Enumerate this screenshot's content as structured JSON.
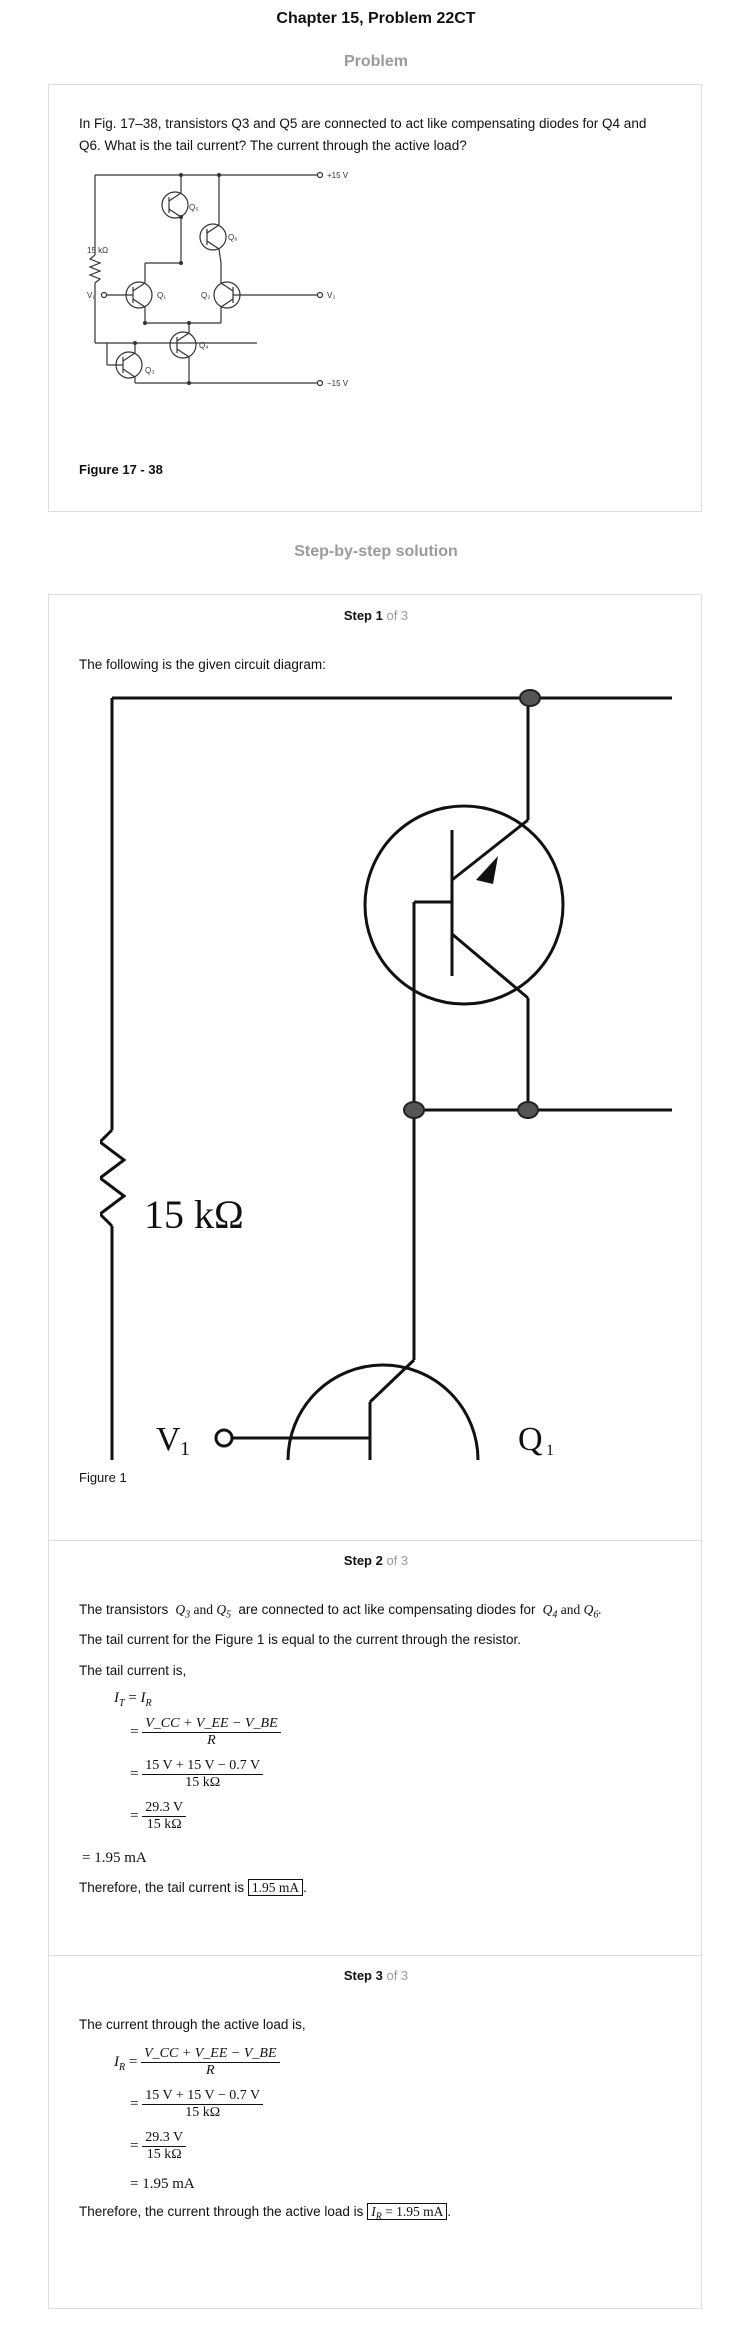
{
  "header": {
    "title": "Chapter 15, Problem 22CT",
    "problem_heading": "Problem",
    "solution_heading": "Step-by-step solution"
  },
  "problem": {
    "text": "In Fig. 17–38, transistors Q3 and Q5 are connected to act like compensating diodes for Q4 and Q6. What is the tail current? The current through the active load?",
    "figure_caption": "Figure 17 - 38",
    "diagram_labels": {
      "vplus": "+15 V",
      "vminus": "−15 V",
      "resistor": "15 kΩ",
      "v1": "V₁",
      "v2": "V₂",
      "q1": "Q₁",
      "q2": "Q₂",
      "q3": "Q₃",
      "q4": "Q₄",
      "q5": "Q₅",
      "q6": "Q₆"
    }
  },
  "steps": [
    {
      "label": "Step 1",
      "of": "of 3",
      "intro": "The following is the given circuit diagram:",
      "figure_caption": "Figure 1",
      "diagram_labels": {
        "resistor": "15 kΩ",
        "v1": "V",
        "v1_sub": "1",
        "q1": "Q",
        "q1_sub": "1"
      }
    },
    {
      "label": "Step 2",
      "of": "of 3",
      "line1_pre": "The transistors",
      "line1_mid": "are connected to act like compensating diodes for",
      "line2": "The tail current for the Figure 1 is equal to the current through the resistor.",
      "line3": "The tail current is,",
      "conclusion_pre": "Therefore, the tail current is",
      "answer": "1.95 mA"
    },
    {
      "label": "Step 3",
      "of": "of 3",
      "line1": "The current through the active load is,",
      "conclusion_pre": "Therefore, the current through the active load is",
      "answer": "1.95 mA"
    }
  ],
  "math": {
    "numerator_symbolic": "V_CC + V_EE − V_BE",
    "denominator_symbolic": "R",
    "numerator_values": "15 V + 15 V − 0.7 V",
    "denominator_values": "15 kΩ",
    "numerator_result": "29.3 V",
    "result": "1.95 mA"
  }
}
